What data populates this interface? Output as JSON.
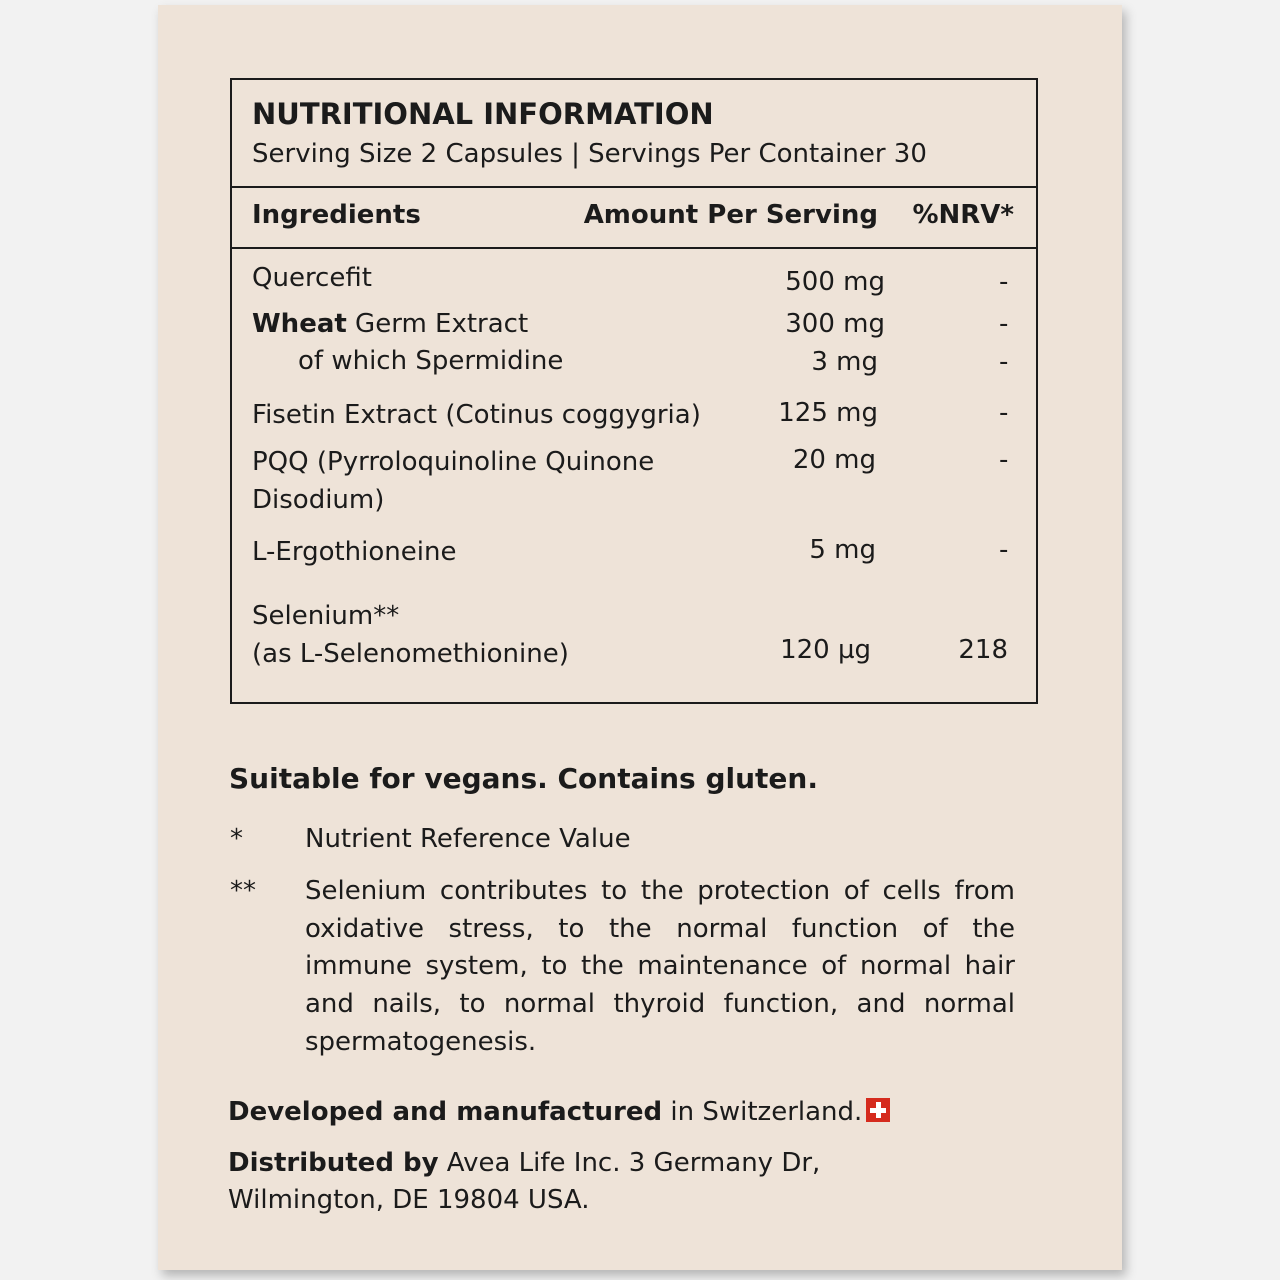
{
  "header": {
    "title": "NUTRITIONAL INFORMATION",
    "serving": "Serving Size 2 Capsules | Servings Per Container 30"
  },
  "columns": {
    "ingredients": "Ingredients",
    "amount": "Amount Per Serving",
    "nrv": "%NRV*"
  },
  "rows": [
    {
      "name": "Quercefit",
      "amount": "500 mg",
      "nrv": "-"
    },
    {
      "name_bold": "Wheat",
      "name": " Germ Extract",
      "amount": "300 mg",
      "nrv": "-"
    },
    {
      "name": "of which Spermidine",
      "amount": "3 mg",
      "nrv": "-"
    },
    {
      "name": "Fisetin Extract (Cotinus coggygria)",
      "amount": "125 mg",
      "nrv": "-"
    },
    {
      "name": "PQQ (Pyrroloquinoline Quinone",
      "name2": "Disodium)",
      "amount": "20 mg",
      "nrv": "-"
    },
    {
      "name": "L-Ergothioneine",
      "amount": "5 mg",
      "nrv": "-"
    },
    {
      "name": "Selenium**",
      "name2": "(as L-Selenomethionine)",
      "amount": "120 µg",
      "nrv": "218"
    }
  ],
  "notes": {
    "vegan": "Suitable for vegans. Contains gluten.",
    "star1": "*",
    "star1_text": "Nutrient Reference Value",
    "star2": "**",
    "star2_text": "Selenium contributes to the protection of cells from oxidative stress, to the normal function of the immune system, to the maintenance of normal hair and nails, to normal thyroid function, and normal spermatogenesis."
  },
  "footer": {
    "dev_bold": "Developed and manufactured",
    "dev_rest": " in Switzerland.",
    "flag_icon": "swiss-flag-icon",
    "dist_bold": "Distributed by",
    "dist_rest": " Avea Life Inc. 3 Germany Dr,",
    "dist_line2": "Wilmington, DE 19804 USA."
  },
  "colors": {
    "background": "#eee3d8",
    "text": "#1b1b1b",
    "flag": "#d52b1e"
  }
}
